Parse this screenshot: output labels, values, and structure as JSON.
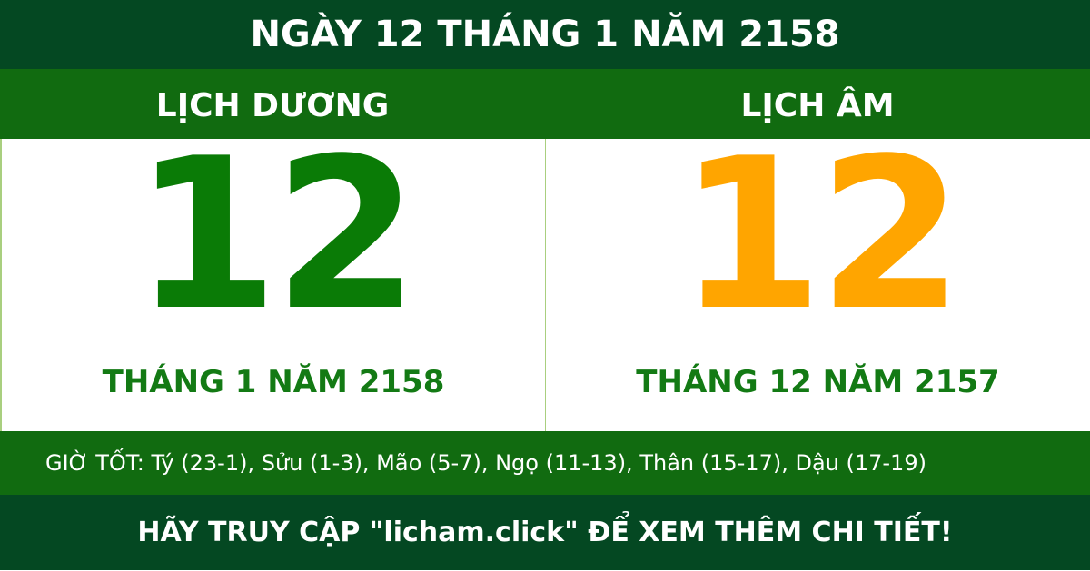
{
  "header": {
    "title": "NGÀY 12 THÁNG 1 NĂM 2158"
  },
  "solar": {
    "label": "LỊCH DƯƠNG",
    "day": "12",
    "month_year": "THÁNG 1 NĂM 2158",
    "color": "#0a7b06"
  },
  "lunar": {
    "label": "LỊCH ÂM",
    "day": "12",
    "month_year": "THÁNG 12 NĂM 2157",
    "color": "#ffa500"
  },
  "good_hours": "GIỜ TỐT: Tý (23-1), Sửu (1-3), Mão (5-7), Ngọ (11-13), Thân (15-17), Dậu (17-19)",
  "footer": {
    "text": "HÃY TRUY CẬP \"licham.click\" ĐỂ XEM THÊM CHI TIẾT!"
  }
}
